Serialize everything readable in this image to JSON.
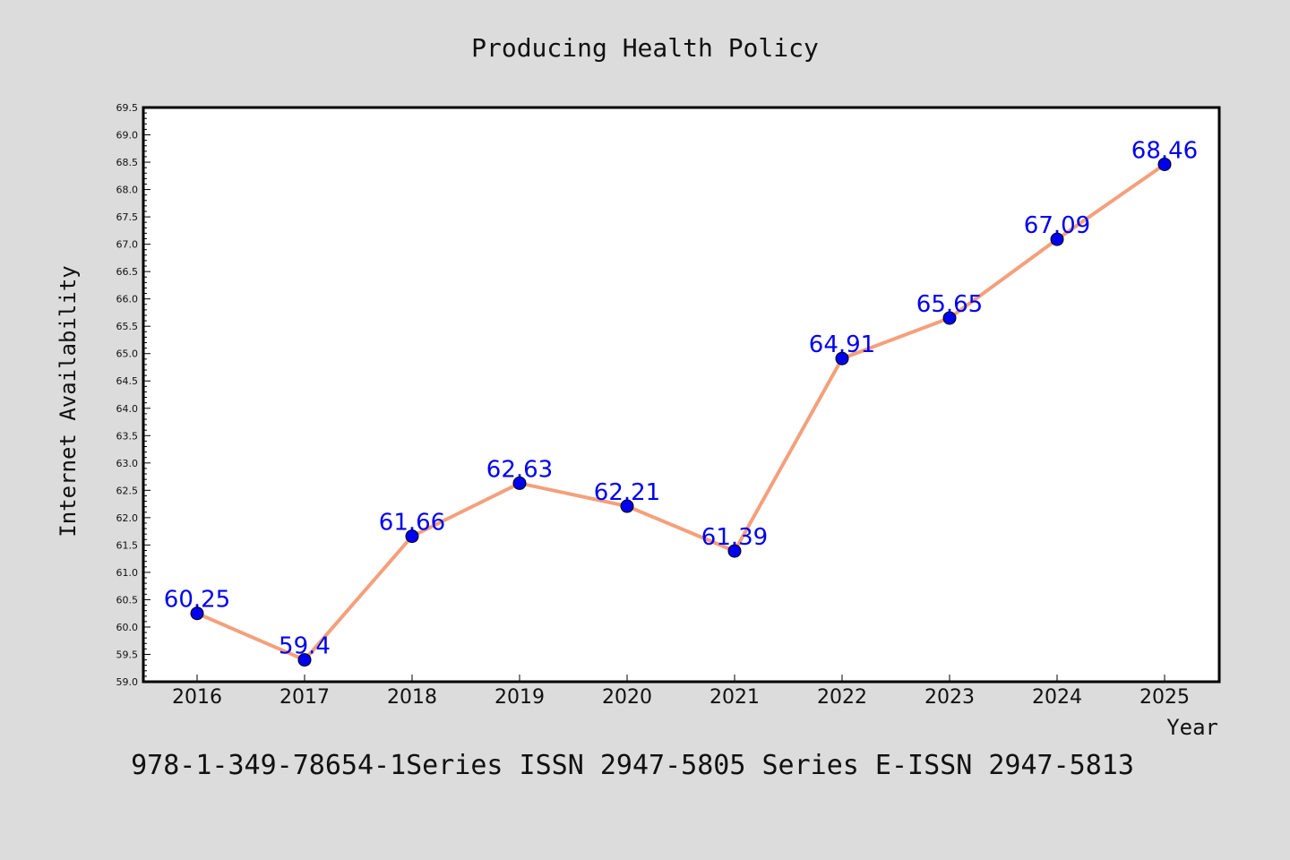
{
  "chart_data": {
    "type": "line",
    "title": "Producing Health Policy",
    "xlabel": "Year",
    "ylabel": "Internet Availability",
    "categories": [
      "2016",
      "2017",
      "2018",
      "2019",
      "2020",
      "2021",
      "2022",
      "2023",
      "2024",
      "2025"
    ],
    "series": [
      {
        "values": [
          60.25,
          59.4,
          61.66,
          62.63,
          62.21,
          61.39,
          64.91,
          65.65,
          67.09,
          68.46
        ],
        "data_labels": [
          "60.25",
          "59.4",
          "61.66",
          "62.63",
          "62.21",
          "61.39",
          "64.91",
          "65.65",
          "67.09",
          "68.46"
        ],
        "line_color": "#f4a07c",
        "marker_color": "#0000ee",
        "label_color": "#0000ee"
      }
    ],
    "ylim": [
      59.0,
      69.5
    ],
    "yticks": [
      "59.0",
      "59.5",
      "60.0",
      "60.5",
      "61.0",
      "61.5",
      "62.0",
      "62.5",
      "63.0",
      "63.5",
      "64.0",
      "64.5",
      "65.0",
      "65.5",
      "66.0",
      "66.5",
      "67.0",
      "67.5",
      "68.0",
      "68.5",
      "69.0",
      "69.5"
    ],
    "grid": false
  },
  "footer": "978-1-349-78654-1Series ISSN 2947-5805 Series E-ISSN 2947-5813",
  "colors": {
    "background": "#dcdcdc",
    "plot_background": "#ffffff"
  }
}
